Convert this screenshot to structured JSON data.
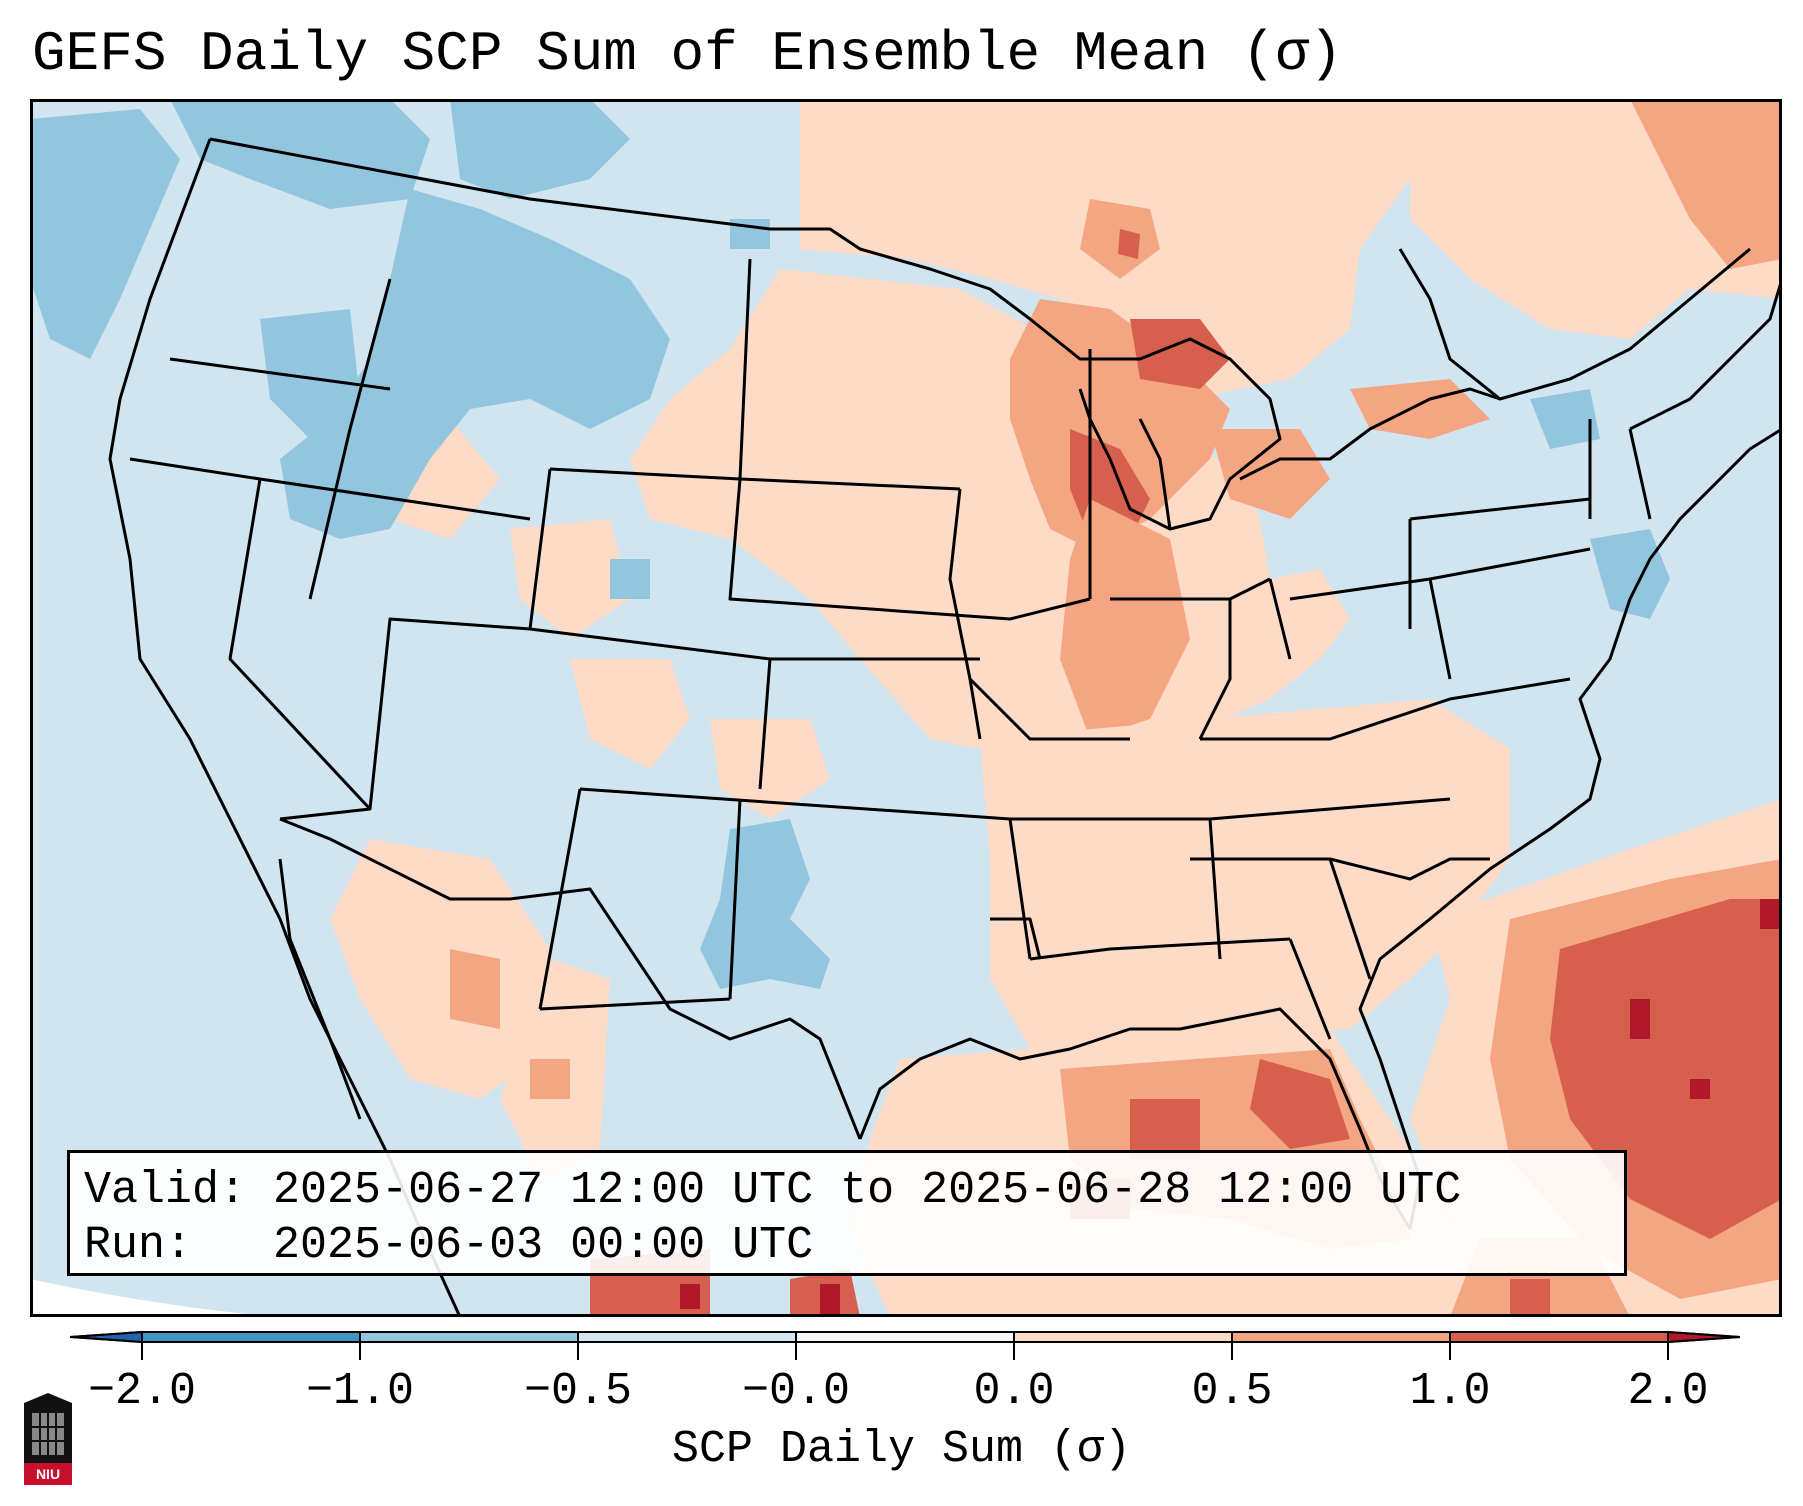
{
  "title": "GEFS Daily SCP Sum of Ensemble Mean (σ)",
  "info": {
    "valid_label": "Valid:",
    "valid_value": "2025-06-27 12:00 UTC to 2025-06-28 12:00 UTC",
    "run_label": "Run:",
    "run_value": "2025-06-03 00:00 UTC"
  },
  "colorbar": {
    "label": "SCP Daily Sum (σ)",
    "ticks": [
      "−2.0",
      "−1.0",
      "−0.5",
      "−0.0",
      "0.0",
      "0.5",
      "1.0",
      "2.0"
    ],
    "bins": [
      {
        "range": "< -2.0",
        "color": "#2166ac"
      },
      {
        "range": "-2.0 to -1.0",
        "color": "#4393c3"
      },
      {
        "range": "-1.0 to -0.5",
        "color": "#92c5de"
      },
      {
        "range": "-0.5 to -0.0",
        "color": "#d1e5f0"
      },
      {
        "range": "-0.0 to 0.0",
        "color": "#f7f7f7"
      },
      {
        "range": "0.0 to 0.5",
        "color": "#fddbc7"
      },
      {
        "range": "0.5 to 1.0",
        "color": "#f4a582"
      },
      {
        "range": "1.0 to 2.0",
        "color": "#d6604d"
      },
      {
        "range": "> 2.0",
        "color": "#b2182b"
      }
    ]
  },
  "logo": {
    "text": "NIU",
    "name": "Northern Illinois University"
  },
  "map": {
    "projection": "Lambert Conformal (CONUS)",
    "regions": [
      {
        "name": "Pacific Northwest / Idaho / Montana",
        "category": "-1.0 to -0.5"
      },
      {
        "name": "West Texas",
        "category": "-1.0 to -0.5"
      },
      {
        "name": "Upper Midwest / Great Lakes",
        "category": "0.5 to 1.0"
      },
      {
        "name": "Northern Michigan / Wisconsin",
        "category": "1.0 to 2.0"
      },
      {
        "name": "Gulf of Mexico",
        "category": "0.5 to 1.0"
      },
      {
        "name": "Western Atlantic",
        "category": "1.0 to 2.0"
      },
      {
        "name": "Southeast US",
        "category": "0.0 to 0.5"
      }
    ]
  }
}
